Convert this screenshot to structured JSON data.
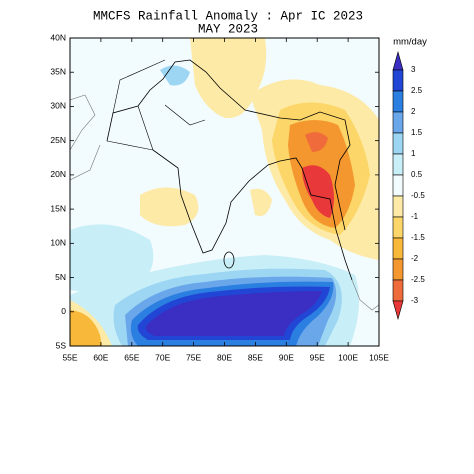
{
  "chart_data": {
    "type": "filled-contour-map",
    "title": "MMCFS Rainfall Anomaly : Apr IC 2023",
    "subtitle": "MAY 2023",
    "xlim": [
      55,
      105
    ],
    "ylim": [
      -5,
      40
    ],
    "xticks": [
      {
        "value": 55,
        "label": "55E"
      },
      {
        "value": 60,
        "label": "60E"
      },
      {
        "value": 65,
        "label": "65E"
      },
      {
        "value": 70,
        "label": "70E"
      },
      {
        "value": 75,
        "label": "75E"
      },
      {
        "value": 80,
        "label": "80E"
      },
      {
        "value": 85,
        "label": "85E"
      },
      {
        "value": 90,
        "label": "90E"
      },
      {
        "value": 95,
        "label": "95E"
      },
      {
        "value": 100,
        "label": "100E"
      },
      {
        "value": 105,
        "label": "105E"
      }
    ],
    "yticks": [
      {
        "value": 40,
        "label": "40N"
      },
      {
        "value": 35,
        "label": "35N"
      },
      {
        "value": 30,
        "label": "30N"
      },
      {
        "value": 25,
        "label": "25N"
      },
      {
        "value": 20,
        "label": "20N"
      },
      {
        "value": 15,
        "label": "15N"
      },
      {
        "value": 10,
        "label": "10N"
      },
      {
        "value": 5,
        "label": "5N"
      },
      0,
      {
        "value": -5,
        "label": "5S"
      }
    ],
    "colorbar": {
      "label": "mm/day",
      "levels": [
        3,
        2.5,
        2,
        1.5,
        1,
        0.5,
        -0.5,
        -1,
        -1.5,
        -2,
        -2.5,
        -3
      ],
      "colors": [
        "#3a2fc2",
        "#2146d6",
        "#2a7fe0",
        "#6aa7ea",
        "#9cd6f3",
        "#c8eef7",
        "#f2fbfd",
        "#fdeaa6",
        "#fcd668",
        "#f8b83a",
        "#f5972f",
        "#f06b3b",
        "#e8383a"
      ]
    }
  }
}
